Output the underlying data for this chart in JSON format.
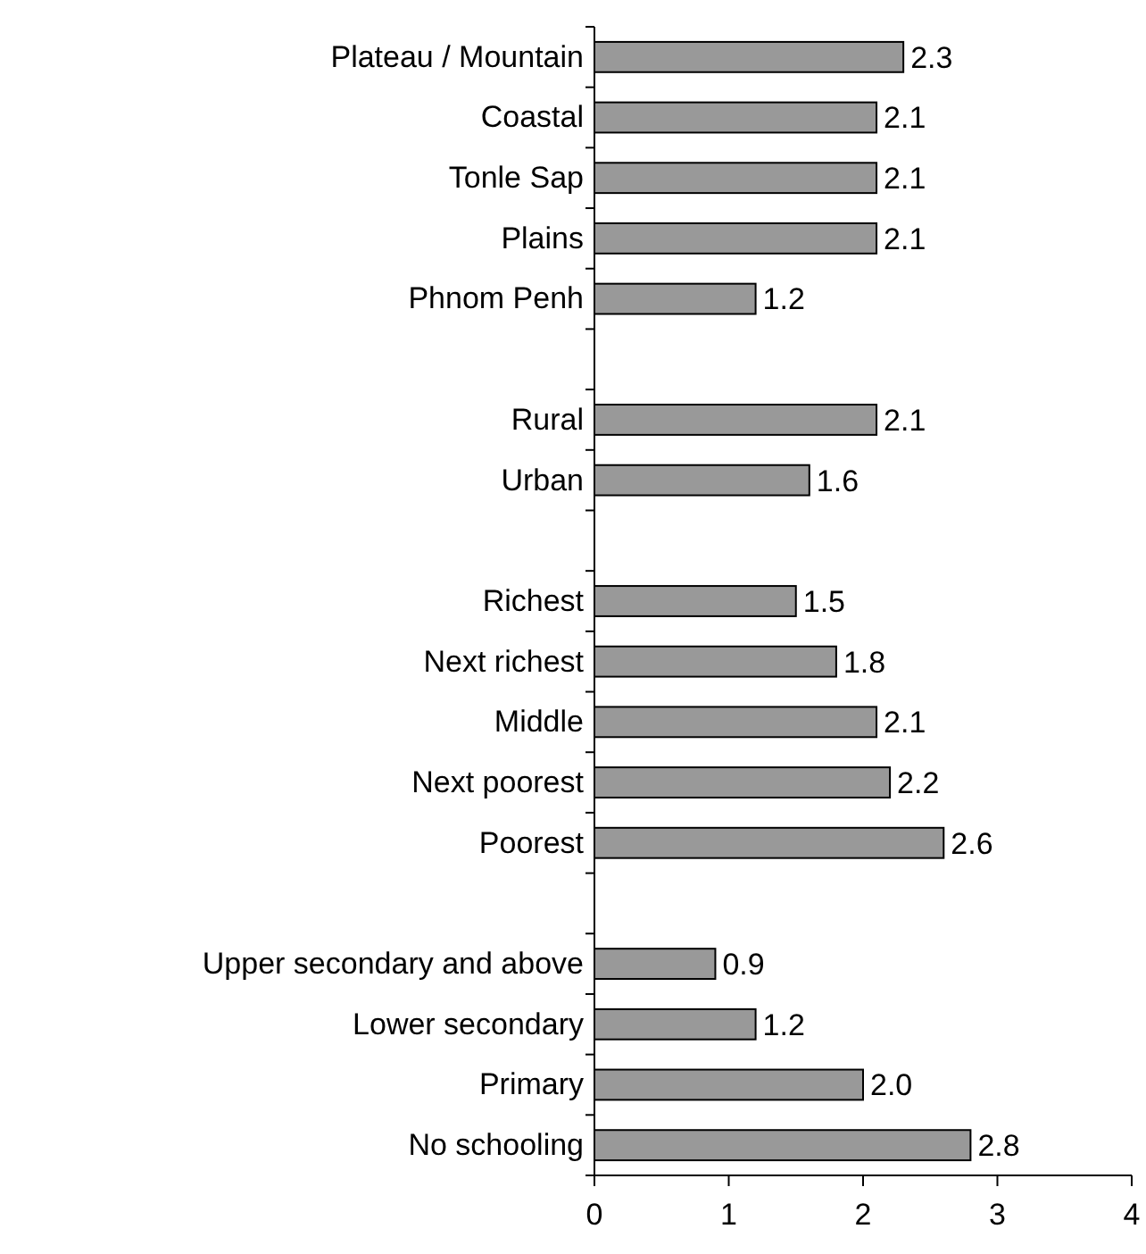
{
  "chart_data": {
    "type": "bar",
    "orientation": "horizontal",
    "categories": [
      "Plateau / Mountain",
      "Coastal",
      "Tonle Sap",
      "Plains",
      "Phnom Penh",
      null,
      "Rural",
      "Urban",
      null,
      "Richest",
      "Next richest",
      "Middle",
      "Next poorest",
      "Poorest",
      null,
      "Upper secondary and above",
      "Lower secondary",
      "Primary",
      "No schooling"
    ],
    "values": [
      2.3,
      2.1,
      2.1,
      2.1,
      1.2,
      null,
      2.1,
      1.6,
      null,
      1.5,
      1.8,
      2.1,
      2.2,
      2.6,
      null,
      0.9,
      1.2,
      2.0,
      2.8
    ],
    "value_labels": [
      "2.3",
      "2.1",
      "2.1",
      "2.1",
      "1.2",
      null,
      "2.1",
      "1.6",
      null,
      "1.5",
      "1.8",
      "2.1",
      "2.2",
      "2.6",
      null,
      "0.9",
      "1.2",
      "2.0",
      "2.8"
    ],
    "color": "#999999",
    "xlim": [
      0,
      4
    ],
    "xticks": [
      0,
      1,
      2,
      3,
      4
    ],
    "grid": false
  }
}
